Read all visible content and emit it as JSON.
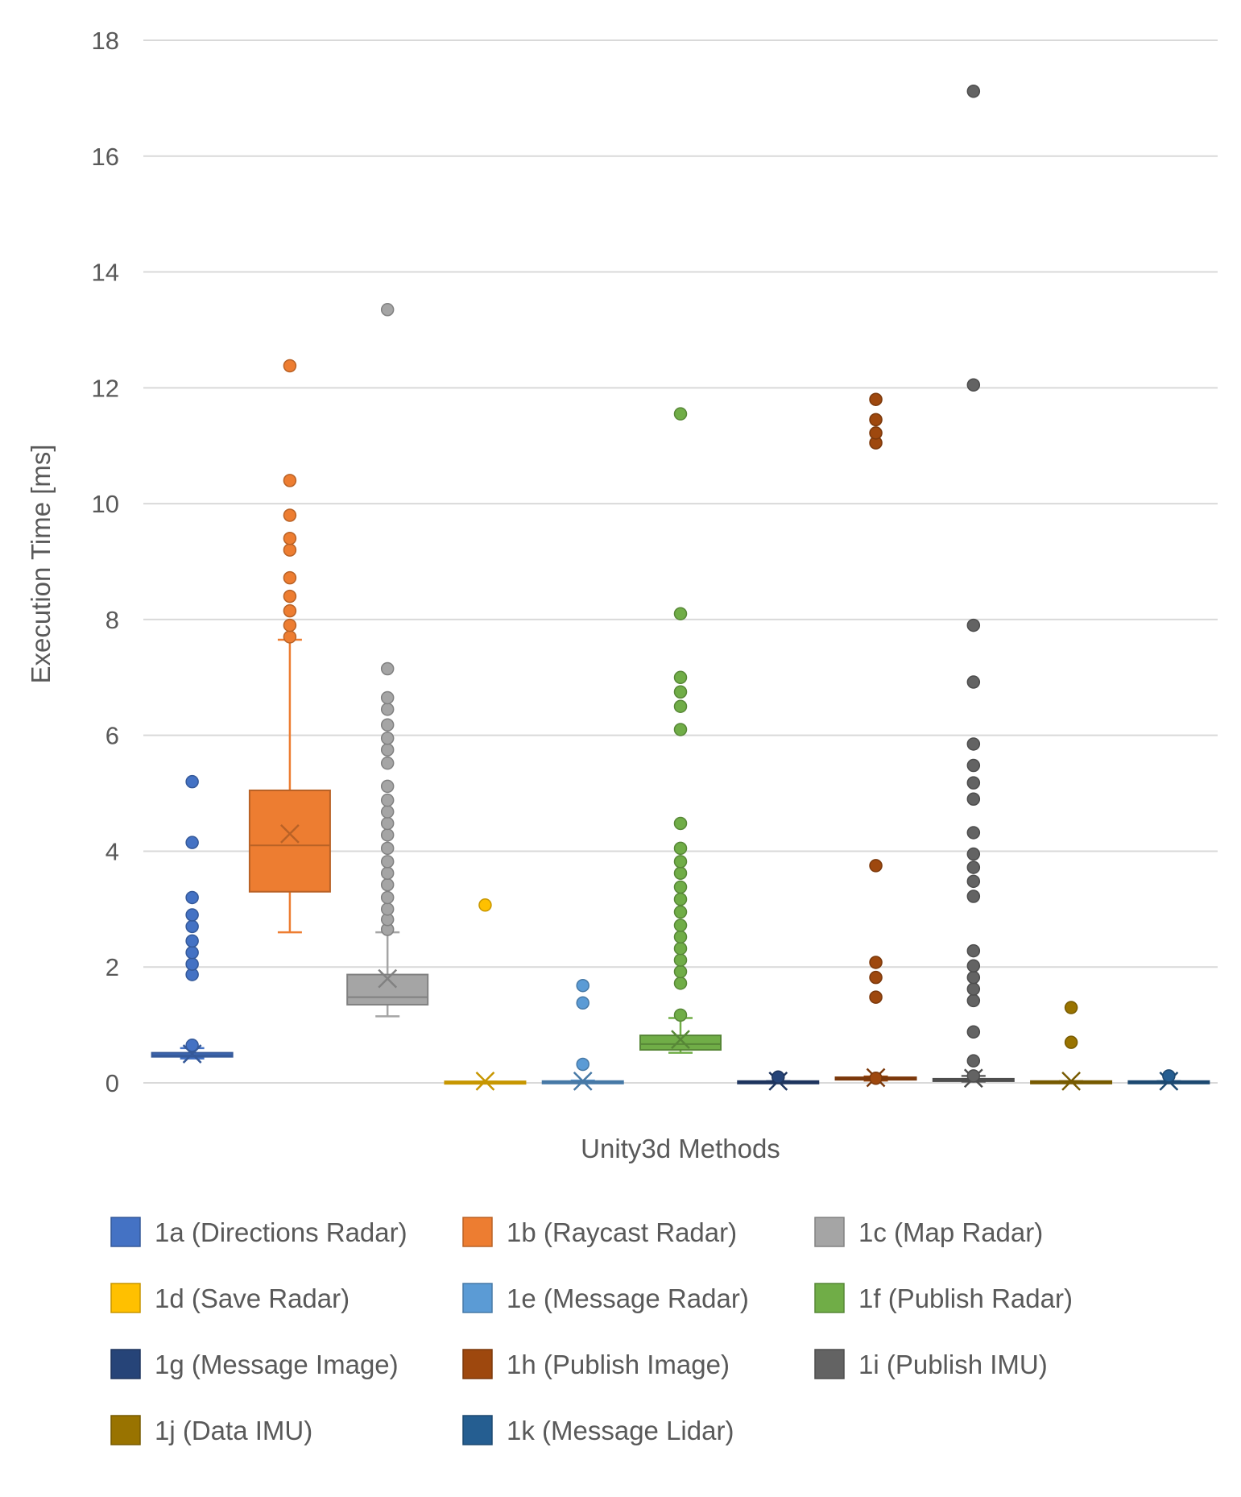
{
  "chart_data": {
    "type": "box",
    "title": "",
    "xlabel": "Unity3d Methods",
    "ylabel": "Execution Time [ms]",
    "ylim": [
      0,
      18
    ],
    "yticks": [
      0,
      2,
      4,
      6,
      8,
      10,
      12,
      14,
      16,
      18
    ],
    "grid": "horizontal",
    "legend_position": "bottom",
    "series": [
      {
        "name": "1a (Directions Radar)",
        "color": "#4472C4",
        "min": 0.42,
        "q1": 0.45,
        "median": 0.48,
        "q3": 0.52,
        "max": 0.6,
        "mean": 0.5,
        "outliers": [
          0.65,
          1.87,
          2.05,
          2.25,
          2.45,
          2.7,
          2.9,
          3.2,
          4.15,
          5.2
        ]
      },
      {
        "name": "1b (Raycast Radar)",
        "color": "#ED7D31",
        "min": 2.6,
        "q1": 3.3,
        "median": 4.1,
        "q3": 5.05,
        "max": 7.65,
        "mean": 4.3,
        "outliers": [
          7.7,
          7.9,
          8.15,
          8.4,
          8.72,
          9.2,
          9.4,
          9.8,
          10.4,
          12.38
        ]
      },
      {
        "name": "1c (Map Radar)",
        "color": "#A5A5A5",
        "min": 1.15,
        "q1": 1.35,
        "median": 1.48,
        "q3": 1.87,
        "max": 2.6,
        "mean": 1.8,
        "outliers": [
          2.65,
          2.82,
          3.0,
          3.2,
          3.42,
          3.62,
          3.82,
          4.05,
          4.28,
          4.48,
          4.68,
          4.88,
          5.12,
          5.52,
          5.75,
          5.95,
          6.18,
          6.45,
          6.65,
          7.15,
          13.35
        ]
      },
      {
        "name": "1d (Save Radar)",
        "color": "#FFC000",
        "min": 0.0,
        "q1": 0.0,
        "median": 0.0,
        "q3": 0.01,
        "max": 0.02,
        "mean": 0.03,
        "outliers": [
          3.07
        ]
      },
      {
        "name": "1e (Message Radar)",
        "color": "#5B9BD5",
        "min": 0.0,
        "q1": 0.0,
        "median": 0.01,
        "q3": 0.02,
        "max": 0.04,
        "mean": 0.03,
        "outliers": [
          0.32,
          1.38,
          1.68
        ]
      },
      {
        "name": "1f (Publish Radar)",
        "color": "#70AD47",
        "min": 0.52,
        "q1": 0.57,
        "median": 0.67,
        "q3": 0.82,
        "max": 1.12,
        "mean": 0.75,
        "outliers": [
          1.17,
          1.72,
          1.92,
          2.12,
          2.32,
          2.52,
          2.72,
          2.95,
          3.17,
          3.38,
          3.62,
          3.82,
          4.05,
          4.48,
          6.1,
          6.5,
          6.75,
          7.0,
          8.1,
          11.55
        ]
      },
      {
        "name": "1g (Message Image)",
        "color": "#264478",
        "min": 0.0,
        "q1": 0.0,
        "median": 0.01,
        "q3": 0.02,
        "max": 0.03,
        "mean": 0.03,
        "outliers": [
          0.1
        ]
      },
      {
        "name": "1h (Publish Image)",
        "color": "#9E480E",
        "min": 0.04,
        "q1": 0.06,
        "median": 0.07,
        "q3": 0.09,
        "max": 0.11,
        "mean": 0.09,
        "outliers": [
          0.08,
          1.48,
          1.82,
          2.08,
          3.75,
          11.05,
          11.22,
          11.45,
          11.8
        ]
      },
      {
        "name": "1i (Publish IMU)",
        "color": "#636363",
        "min": 0.02,
        "q1": 0.03,
        "median": 0.04,
        "q3": 0.07,
        "max": 0.12,
        "mean": 0.08,
        "outliers": [
          0.12,
          0.38,
          0.88,
          1.42,
          1.62,
          1.82,
          2.02,
          2.28,
          3.22,
          3.48,
          3.72,
          3.95,
          4.32,
          4.9,
          5.18,
          5.48,
          5.85,
          6.92,
          7.9,
          12.05,
          17.12
        ]
      },
      {
        "name": "1j (Data IMU)",
        "color": "#997300",
        "min": 0.0,
        "q1": 0.0,
        "median": 0.01,
        "q3": 0.02,
        "max": 0.03,
        "mean": 0.03,
        "outliers": [
          0.7,
          1.3
        ]
      },
      {
        "name": "1k (Message Lidar)",
        "color": "#255E91",
        "min": 0.0,
        "q1": 0.0,
        "median": 0.01,
        "q3": 0.02,
        "max": 0.03,
        "mean": 0.03,
        "outliers": [
          0.12
        ]
      }
    ]
  }
}
